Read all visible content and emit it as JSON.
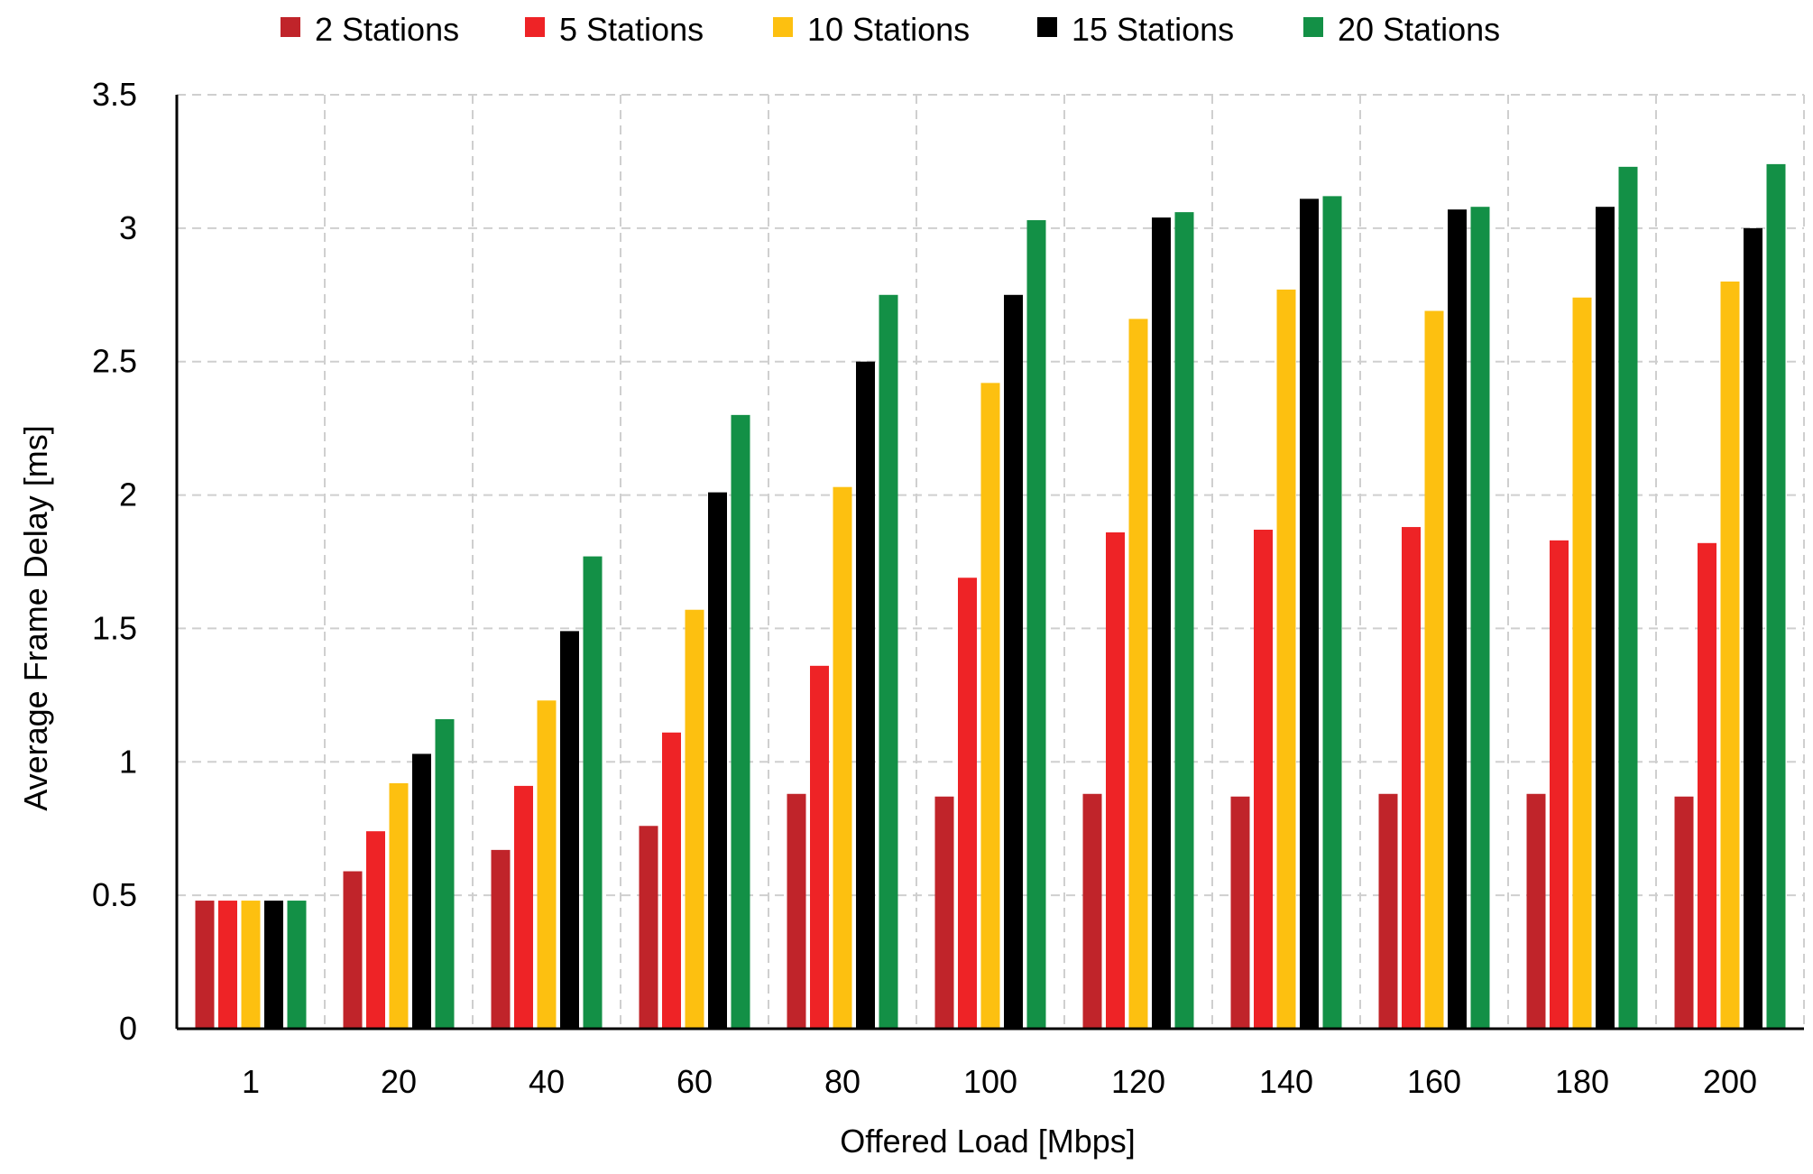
{
  "chart_data": {
    "type": "bar",
    "title": "",
    "xlabel": "Offered Load [Mbps]",
    "ylabel": "Average Frame Delay [ms]",
    "ylim": [
      0,
      3.5
    ],
    "yticks": [
      "0",
      "0.5",
      "1",
      "1.5",
      "2",
      "2.5",
      "3",
      "3.5"
    ],
    "grid": true,
    "legend_position": "top",
    "categories": [
      "1",
      "20",
      "40",
      "60",
      "80",
      "100",
      "120",
      "140",
      "160",
      "180",
      "200"
    ],
    "series": [
      {
        "name": "2 Stations",
        "color": "#c0242a",
        "values": [
          0.48,
          0.59,
          0.67,
          0.76,
          0.88,
          0.87,
          0.88,
          0.87,
          0.88,
          0.88,
          0.87
        ]
      },
      {
        "name": "5 Stations",
        "color": "#ee2326",
        "values": [
          0.48,
          0.74,
          0.91,
          1.11,
          1.36,
          1.69,
          1.86,
          1.87,
          1.88,
          1.83,
          1.82
        ]
      },
      {
        "name": "10 Stations",
        "color": "#fdc010",
        "values": [
          0.48,
          0.92,
          1.23,
          1.57,
          2.03,
          2.42,
          2.66,
          2.77,
          2.69,
          2.74,
          2.8
        ]
      },
      {
        "name": "15 Stations",
        "color": "#000000",
        "values": [
          0.48,
          1.03,
          1.49,
          2.01,
          2.5,
          2.75,
          3.04,
          3.11,
          3.07,
          3.08,
          3.0
        ]
      },
      {
        "name": "20 Stations",
        "color": "#139046",
        "values": [
          0.48,
          1.16,
          1.77,
          2.3,
          2.75,
          3.03,
          3.06,
          3.12,
          3.08,
          3.23,
          3.24
        ]
      }
    ]
  }
}
